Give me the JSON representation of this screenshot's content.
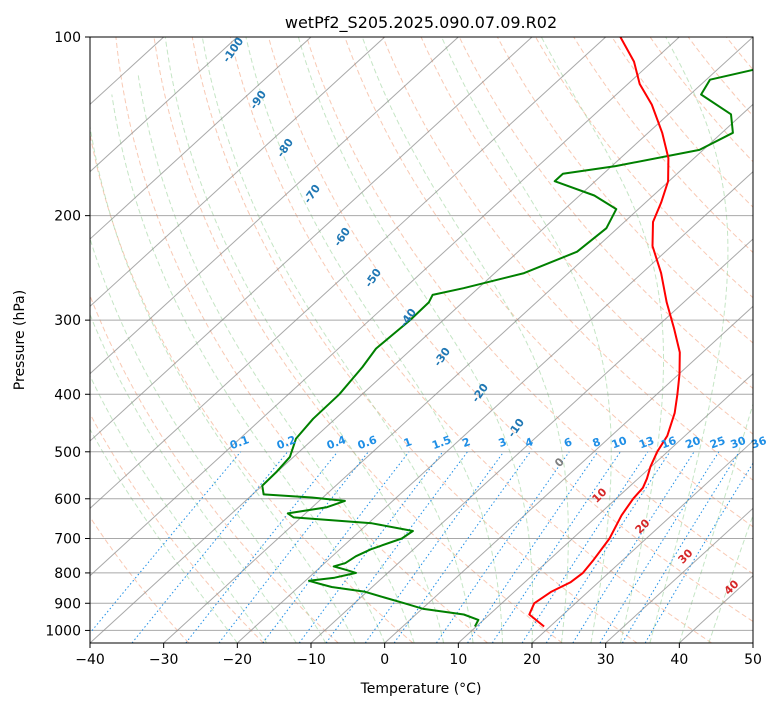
{
  "chart_data": {
    "type": "line",
    "subtype": "skew-t log-p diagram",
    "title": "wetPf2_S205.2025.090.07.09.R02",
    "xlabel": "Temperature (°C)",
    "ylabel": "Pressure (hPa)",
    "xlim": [
      -40,
      50
    ],
    "ylim": [
      1050,
      100
    ],
    "y_scale": "log",
    "x_ticks": [
      "−40",
      "−30",
      "−20",
      "−10",
      "0",
      "10",
      "20",
      "30",
      "40",
      "50"
    ],
    "x_tick_values": [
      -40,
      -30,
      -20,
      -10,
      0,
      10,
      20,
      30,
      40,
      50
    ],
    "y_ticks": [
      "100",
      "200",
      "300",
      "400",
      "500",
      "600",
      "700",
      "800",
      "900",
      "1000"
    ],
    "y_tick_values": [
      100,
      200,
      300,
      400,
      500,
      600,
      700,
      800,
      900,
      1000
    ],
    "grid": true,
    "legend": "none",
    "colors": {
      "temperature": "#ff0000",
      "dewpoint": "#008000",
      "isotherm": "#8c8c8c",
      "dry_adiabat": "#f4a582",
      "moist_adiabat": "#9fd39f",
      "mixing_ratio": "#1f8fe6",
      "dry_label": "#1f77b4",
      "moist_label": "#d62728"
    },
    "series": [
      {
        "role": "temperature",
        "points": [
          {
            "p": 985,
            "t": 19.2
          },
          {
            "p": 940,
            "t": 15.4
          },
          {
            "p": 900,
            "t": 14.4
          },
          {
            "p": 860,
            "t": 15.0
          },
          {
            "p": 830,
            "t": 16.2
          },
          {
            "p": 800,
            "t": 16.5
          },
          {
            "p": 760,
            "t": 16.0
          },
          {
            "p": 700,
            "t": 15.0
          },
          {
            "p": 640,
            "t": 13.2
          },
          {
            "p": 600,
            "t": 12.3
          },
          {
            "p": 575,
            "t": 12.0
          },
          {
            "p": 555,
            "t": 11.2
          },
          {
            "p": 530,
            "t": 9.9
          },
          {
            "p": 500,
            "t": 8.6
          },
          {
            "p": 470,
            "t": 7.6
          },
          {
            "p": 430,
            "t": 5.2
          },
          {
            "p": 400,
            "t": 2.8
          },
          {
            "p": 370,
            "t": 0.1
          },
          {
            "p": 340,
            "t": -3.1
          },
          {
            "p": 310,
            "t": -7.4
          },
          {
            "p": 280,
            "t": -12.3
          },
          {
            "p": 250,
            "t": -17.4
          },
          {
            "p": 225,
            "t": -22.6
          },
          {
            "p": 205,
            "t": -26.1
          },
          {
            "p": 190,
            "t": -27.9
          },
          {
            "p": 175,
            "t": -30.1
          },
          {
            "p": 160,
            "t": -33.5
          },
          {
            "p": 145,
            "t": -38.1
          },
          {
            "p": 130,
            "t": -43.7
          },
          {
            "p": 120,
            "t": -48.4
          },
          {
            "p": 110,
            "t": -52.5
          },
          {
            "p": 100,
            "t": -58.0
          }
        ]
      },
      {
        "role": "dewpoint",
        "points": [
          {
            "p": 985,
            "t": 9.8
          },
          {
            "p": 960,
            "t": 9.3
          },
          {
            "p": 940,
            "t": 6.5
          },
          {
            "p": 920,
            "t": 0.2
          },
          {
            "p": 900,
            "t": -3.2
          },
          {
            "p": 880,
            "t": -6.8
          },
          {
            "p": 860,
            "t": -10.4
          },
          {
            "p": 845,
            "t": -15.5
          },
          {
            "p": 835,
            "t": -17.5
          },
          {
            "p": 825,
            "t": -19.5
          },
          {
            "p": 815,
            "t": -16.5
          },
          {
            "p": 800,
            "t": -14.3
          },
          {
            "p": 790,
            "t": -16.2
          },
          {
            "p": 780,
            "t": -18.3
          },
          {
            "p": 770,
            "t": -17.2
          },
          {
            "p": 750,
            "t": -16.8
          },
          {
            "p": 730,
            "t": -15.8
          },
          {
            "p": 700,
            "t": -13.2
          },
          {
            "p": 680,
            "t": -12.8
          },
          {
            "p": 660,
            "t": -19.5
          },
          {
            "p": 645,
            "t": -31.0
          },
          {
            "p": 635,
            "t": -32.4
          },
          {
            "p": 620,
            "t": -28.0
          },
          {
            "p": 605,
            "t": -26.5
          },
          {
            "p": 597,
            "t": -31.5
          },
          {
            "p": 590,
            "t": -38.5
          },
          {
            "p": 570,
            "t": -40.0
          },
          {
            "p": 540,
            "t": -40.1
          },
          {
            "p": 510,
            "t": -40.5
          },
          {
            "p": 475,
            "t": -42.4
          },
          {
            "p": 440,
            "t": -43.0
          },
          {
            "p": 400,
            "t": -43.1
          },
          {
            "p": 360,
            "t": -44.0
          },
          {
            "p": 335,
            "t": -44.9
          },
          {
            "p": 300,
            "t": -44.5
          },
          {
            "p": 280,
            "t": -44.6
          },
          {
            "p": 272,
            "t": -45.2
          },
          {
            "p": 265,
            "t": -42.0
          },
          {
            "p": 250,
            "t": -36.0
          },
          {
            "p": 230,
            "t": -32.0
          },
          {
            "p": 210,
            "t": -31.5
          },
          {
            "p": 195,
            "t": -33.0
          },
          {
            "p": 185,
            "t": -38.0
          },
          {
            "p": 175,
            "t": -45.5
          },
          {
            "p": 170,
            "t": -45.5
          },
          {
            "p": 165,
            "t": -39.5
          },
          {
            "p": 155,
            "t": -30.5
          },
          {
            "p": 145,
            "t": -28.5
          },
          {
            "p": 135,
            "t": -31.5
          },
          {
            "p": 125,
            "t": -38.5
          },
          {
            "p": 118,
            "t": -39.5
          },
          {
            "p": 112,
            "t": -33.5
          },
          {
            "p": 106,
            "t": -28.5
          },
          {
            "p": 100,
            "t": -27.8
          }
        ]
      }
    ],
    "dry_adiabat_labels": [
      "-100",
      "-90",
      "-80",
      "-70",
      "-60",
      "-50",
      "-40",
      "-30",
      "-20",
      "-10"
    ],
    "moist_adiabat_labels": [
      "0",
      "10",
      "20",
      "30",
      "40"
    ],
    "mixing_ratio_labels": [
      "0.1",
      "0.2",
      "0.4",
      "0.6",
      "1",
      "1.5",
      "2",
      "3",
      "4",
      "6",
      "8",
      "10",
      "13",
      "16",
      "20",
      "25",
      "30",
      "36"
    ]
  }
}
